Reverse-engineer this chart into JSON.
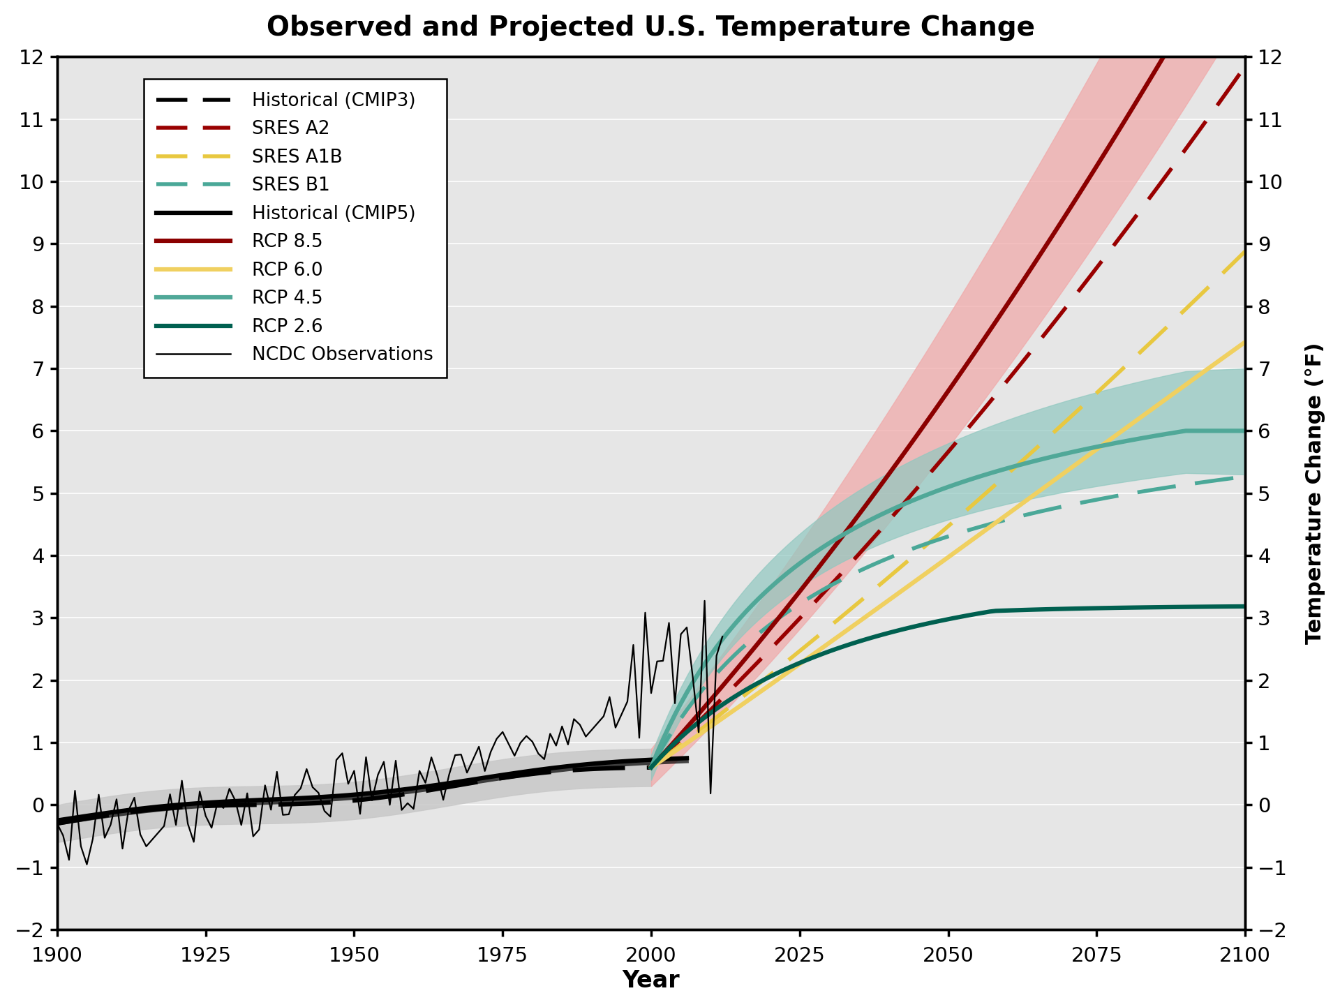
{
  "title": "Observed and Projected U.S. Temperature Change",
  "xlabel": "Year",
  "ylabel_right": "Temperature Change (°F)",
  "ylim": [
    -2,
    12
  ],
  "xlim": [
    1900,
    2100
  ],
  "yticks": [
    -2,
    -1,
    0,
    1,
    2,
    3,
    4,
    5,
    6,
    7,
    8,
    9,
    10,
    11,
    12
  ],
  "xticks": [
    1900,
    1925,
    1950,
    1975,
    2000,
    2025,
    2050,
    2075,
    2100
  ],
  "background_color": "#e6e6e6",
  "colors": {
    "sres_a2": "#990000",
    "sres_a1b": "#E8C840",
    "sres_b1": "#4AA898",
    "rcp85": "#8B0000",
    "rcp60": "#F0D060",
    "rcp45": "#50A898",
    "rcp26": "#006050",
    "rcp85_shade": "#F0AAAA",
    "rcp45_shade": "#90C8C0",
    "cmip3_shade": "#C8C8C8"
  }
}
